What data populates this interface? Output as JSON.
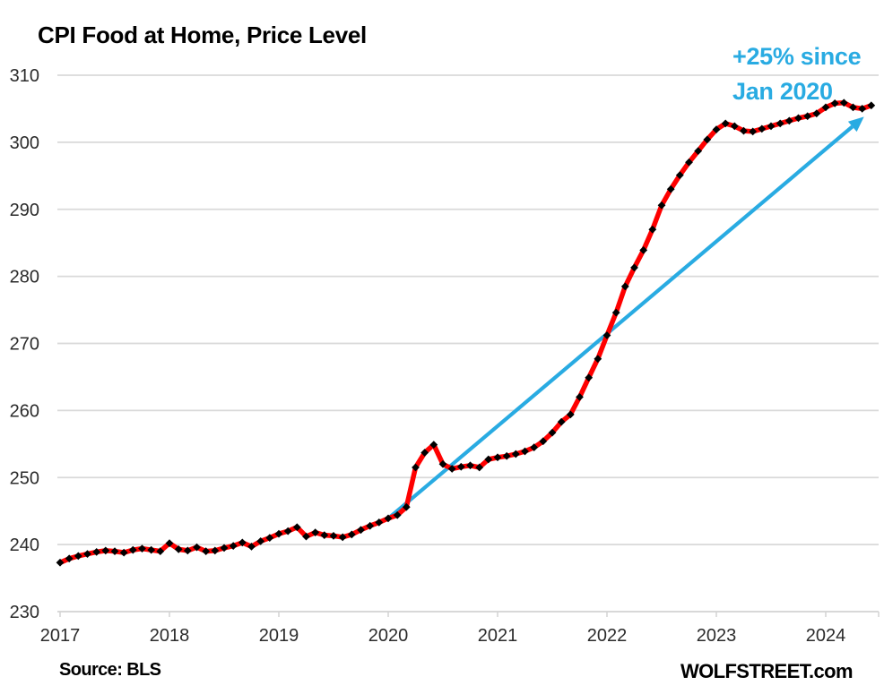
{
  "title": "CPI Food at Home, Price Level",
  "source_label": "Source: BLS",
  "brand_label": "WOLFSTREET.com",
  "annotation": {
    "line1": "+25% since",
    "line2": "Jan 2020",
    "color": "#29ABE2"
  },
  "colors": {
    "series_line": "#FE0000",
    "marker": "#000000",
    "grid": "#D9D9D9",
    "axis": "#D2D2D2",
    "tick_label": "#2b2b2b",
    "arrow": "#29ABE2"
  },
  "chart_data": {
    "type": "line",
    "title": "CPI Food at Home, Price Level",
    "x_start": "Jan 2017",
    "x_end": "Jun 2024",
    "frequency": "monthly",
    "x_tick_labels": [
      "2017",
      "2018",
      "2019",
      "2020",
      "2021",
      "2022",
      "2023",
      "2024"
    ],
    "y_ticks": [
      230,
      240,
      250,
      260,
      270,
      280,
      290,
      300,
      310
    ],
    "ylim": [
      230,
      310
    ],
    "grid": "horizontal-only",
    "legend": "none",
    "series": [
      {
        "name": "CPI Food at Home price level index",
        "color": "#FE0000",
        "marker": "black-diamond",
        "values": [
          237.3,
          237.9,
          238.3,
          238.6,
          238.9,
          239.1,
          239.0,
          238.8,
          239.2,
          239.4,
          239.2,
          239.0,
          240.2,
          239.3,
          239.1,
          239.6,
          239.0,
          239.1,
          239.5,
          239.8,
          240.3,
          239.7,
          240.5,
          241.0,
          241.6,
          242.0,
          242.6,
          241.2,
          241.8,
          241.4,
          241.3,
          241.1,
          241.5,
          242.2,
          242.8,
          243.3,
          243.9,
          244.4,
          245.6,
          251.5,
          253.7,
          254.9,
          252.0,
          251.3,
          251.6,
          251.8,
          251.5,
          252.7,
          253.0,
          253.2,
          253.5,
          253.9,
          254.5,
          255.4,
          256.7,
          258.3,
          259.4,
          262.0,
          264.9,
          267.7,
          271.2,
          274.6,
          278.5,
          281.3,
          283.9,
          287.0,
          290.6,
          293.0,
          295.1,
          297.0,
          298.7,
          300.4,
          301.9,
          302.8,
          302.4,
          301.7,
          301.6,
          302.0,
          302.4,
          302.8,
          303.2,
          303.6,
          303.9,
          304.3,
          305.2,
          305.8,
          305.9,
          305.2,
          305.0,
          305.5
        ]
      }
    ],
    "arrow_annotation": {
      "label": "+25% since Jan 2020",
      "from_month_index": 36,
      "from_value": 243.9,
      "to_month_index": 88.2,
      "to_value": 303.8
    }
  }
}
